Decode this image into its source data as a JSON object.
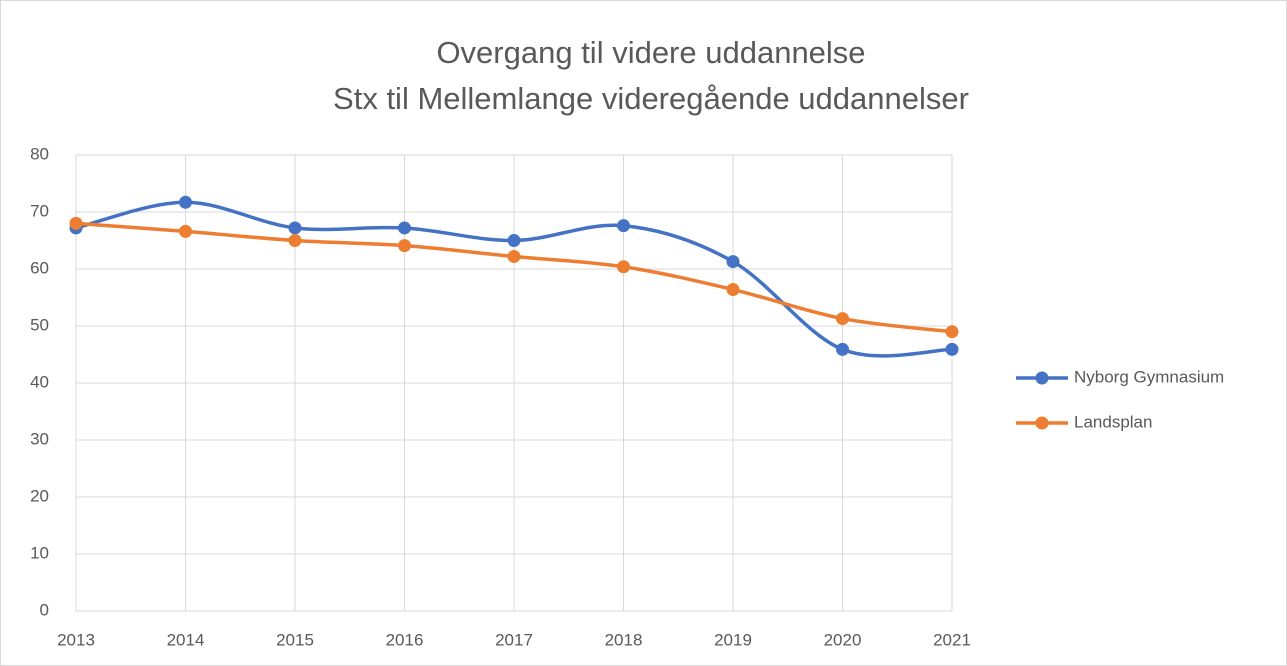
{
  "chart_data": {
    "type": "line",
    "title": "Overgang til videre uddannelse",
    "subtitle": "Stx til Mellemlange videregående uddannelser",
    "x": [
      2013,
      2014,
      2015,
      2016,
      2017,
      2018,
      2019,
      2020,
      2021
    ],
    "xlim": [
      2013,
      2021
    ],
    "xticks": [
      2013,
      2014,
      2015,
      2016,
      2017,
      2018,
      2019,
      2020,
      2021
    ],
    "ylim": [
      0,
      80
    ],
    "yticks": [
      0,
      10,
      20,
      30,
      40,
      50,
      60,
      70,
      80
    ],
    "grid": true,
    "smooth": true,
    "legend": "right",
    "series": [
      {
        "name": "Nyborg Gymnasium",
        "color": "#4472c4",
        "values": [
          67.2,
          71.7,
          67.2,
          67.2,
          65.0,
          67.6,
          61.3,
          45.9,
          45.9
        ]
      },
      {
        "name": "Landsplan",
        "color": "#ed7d31",
        "values": [
          68.0,
          66.6,
          65.0,
          64.1,
          62.2,
          60.4,
          56.4,
          51.3,
          49.0
        ]
      }
    ]
  }
}
